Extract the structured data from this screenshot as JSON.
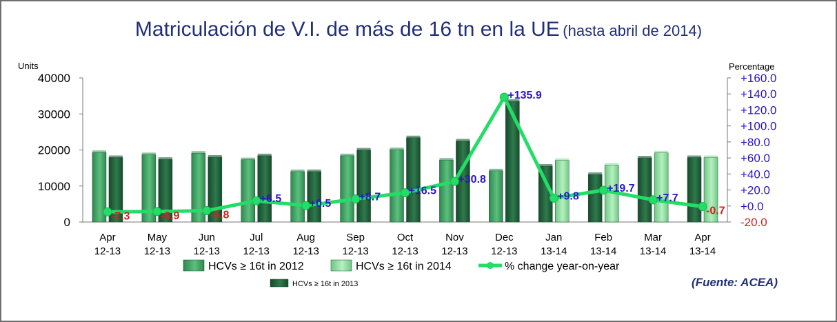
{
  "title": {
    "main": "Matriculación de V.I. de más de 16 tn en la UE",
    "sub": "(hasta abril de 2014)"
  },
  "source": "(Fuente: ACEA)",
  "chart_data": {
    "type": "bar",
    "categories": [
      [
        "Apr",
        "12-13"
      ],
      [
        "May",
        "12-13"
      ],
      [
        "Jun",
        "12-13"
      ],
      [
        "Jul",
        "12-13"
      ],
      [
        "Aug",
        "12-13"
      ],
      [
        "Sep",
        "12-13"
      ],
      [
        "Oct",
        "12-13"
      ],
      [
        "Nov",
        "12-13"
      ],
      [
        "Dec",
        "12-13"
      ],
      [
        "Jan",
        "13-14"
      ],
      [
        "Feb",
        "13-14"
      ],
      [
        "Mar",
        "13-14"
      ],
      [
        "Apr",
        "13-14"
      ]
    ],
    "left_axis": {
      "label": "Units",
      "ylim": [
        0,
        40000
      ],
      "ticks": [
        0,
        10000,
        20000,
        30000,
        40000
      ]
    },
    "right_axis": {
      "label": "Percentage",
      "ylim": [
        -20,
        160
      ],
      "ticks": [
        -20,
        0,
        20,
        40,
        60,
        80,
        100,
        120,
        140,
        160
      ],
      "tick_labels": [
        "-20.0",
        "+0.0",
        "+20.0",
        "+40.0",
        "+60.0",
        "+80.0",
        "+100.0",
        "+120.0",
        "+140.0",
        "+160.0"
      ]
    },
    "series": [
      {
        "name": "HCVs ≥ 16t in 2012",
        "type": "bar",
        "axis": "left",
        "color": "#3d9a5f",
        "values": [
          19300,
          18700,
          19100,
          17300,
          14000,
          18400,
          20100,
          17200,
          14200,
          null,
          null,
          null,
          null
        ]
      },
      {
        "name": "HCVs ≥ 16t in 2013",
        "type": "bar",
        "axis": "left",
        "color": "#1f5c3a",
        "values": [
          17900,
          17400,
          18000,
          18400,
          14000,
          20000,
          23400,
          22500,
          33500,
          15500,
          13200,
          17800,
          17900
        ]
      },
      {
        "name": "HCVs ≥ 16t in 2014",
        "type": "bar",
        "axis": "left",
        "color": "#8fdc9f",
        "values": [
          null,
          null,
          null,
          null,
          null,
          null,
          null,
          null,
          null,
          17100,
          15800,
          19200,
          17900
        ]
      },
      {
        "name": "% change year-on-year",
        "type": "line",
        "axis": "right",
        "color": "#22dd66",
        "values": [
          -7.3,
          -6.9,
          -5.8,
          6.5,
          0.5,
          8.7,
          16.5,
          30.8,
          135.9,
          9.8,
          19.7,
          7.7,
          -0.7
        ],
        "labels": [
          "-7.3",
          "-6.9",
          "-5.8",
          "+6.5",
          "+0.5",
          "+8.7",
          "+16.5",
          "+30.8",
          "+135.9",
          "+9.8",
          "+19.7",
          "+7.7",
          "-0.7"
        ]
      }
    ],
    "legend": {
      "row1": [
        "HCVs ≥ 16t in 2012",
        "HCVs ≥ 16t in 2014",
        "% change year-on-year"
      ],
      "row2": [
        "HCVs ≥ 16t in 2013"
      ]
    },
    "positive_label_color": "#2a15c8",
    "negative_label_color": "#d91c1c"
  }
}
